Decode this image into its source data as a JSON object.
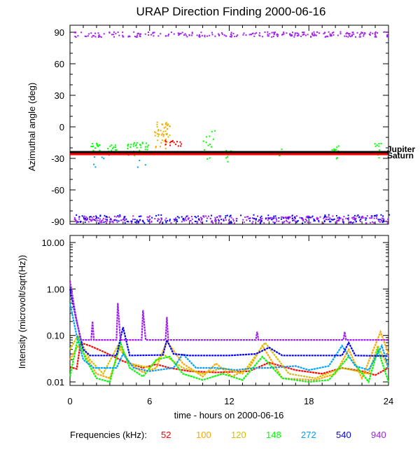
{
  "chart_data": [
    {
      "type": "scatter",
      "title": "URAP Direction Finding  2000-06-16",
      "xlabel": "",
      "ylabel": "Azimuthal angle (deg)",
      "xlim": [
        0,
        24
      ],
      "ylim": [
        -92,
        92
      ],
      "yticks": [
        "90",
        "60",
        "30",
        "0",
        "-30",
        "-60",
        "-90"
      ],
      "ytick_values": [
        90,
        60,
        30,
        0,
        -30,
        -60,
        -90
      ],
      "reference_lines": [
        {
          "label": "Jupiter",
          "value": -24,
          "color": "#000000"
        },
        {
          "label": "Saturn",
          "value": -26,
          "color": "#ff0000"
        }
      ],
      "point_clusters": [
        {
          "freq": "940",
          "hours": [
            0.3,
            24
          ],
          "deg": [
            86,
            91
          ],
          "n": 260
        },
        {
          "freq": "940",
          "hours": [
            0.3,
            24
          ],
          "deg": [
            -91,
            -84
          ],
          "n": 320
        },
        {
          "freq": "540",
          "hours": [
            0.3,
            24
          ],
          "deg": [
            -91,
            -83
          ],
          "n": 180
        },
        {
          "freq": "148",
          "hours": [
            1.5,
            2.2
          ],
          "deg": [
            -25,
            -15
          ],
          "n": 14
        },
        {
          "freq": "148",
          "hours": [
            2.8,
            3.5
          ],
          "deg": [
            -25,
            -15
          ],
          "n": 14
        },
        {
          "freq": "148",
          "hours": [
            4,
            6
          ],
          "deg": [
            -28,
            -14
          ],
          "n": 40
        },
        {
          "freq": "100",
          "hours": [
            6.3,
            7.3
          ],
          "deg": [
            -20,
            6
          ],
          "n": 30
        },
        {
          "freq": "120",
          "hours": [
            6.5,
            7.5
          ],
          "deg": [
            -15,
            5
          ],
          "n": 20
        },
        {
          "freq": "52",
          "hours": [
            7,
            8.5
          ],
          "deg": [
            -18,
            -12
          ],
          "n": 15
        },
        {
          "freq": "148",
          "hours": [
            10,
            11
          ],
          "deg": [
            -30,
            -2
          ],
          "n": 15
        },
        {
          "freq": "148",
          "hours": [
            11.5,
            12.3
          ],
          "deg": [
            -33,
            -20
          ],
          "n": 8
        },
        {
          "freq": "148",
          "hours": [
            15.5,
            16
          ],
          "deg": [
            -28,
            -20
          ],
          "n": 6
        },
        {
          "freq": "148",
          "hours": [
            19.7,
            20.2
          ],
          "deg": [
            -30,
            -16
          ],
          "n": 10
        },
        {
          "freq": "148",
          "hours": [
            22.8,
            23.4
          ],
          "deg": [
            -30,
            -14
          ],
          "n": 10
        },
        {
          "freq": "272",
          "hours": [
            1,
            6
          ],
          "deg": [
            -38,
            -25
          ],
          "n": 10
        }
      ]
    },
    {
      "type": "line",
      "xlabel": "time - hours on 2000-06-16",
      "ylabel": "Intensity (microvolt/sqrt(Hz))",
      "xlim": [
        0,
        24
      ],
      "ylim": [
        0.01,
        10
      ],
      "yscale": "log",
      "yticks": [
        "10.00",
        "1.00",
        "0.10",
        "0.01"
      ],
      "ytick_values": [
        10,
        1,
        0.1,
        0.01
      ],
      "xticks": [
        "0",
        "6",
        "12",
        "18",
        "24"
      ],
      "xtick_values": [
        0,
        6,
        12,
        18,
        24
      ],
      "legend_title": "Frequencies (kHz):",
      "series": [
        {
          "name": "52",
          "color": "#ff0000",
          "points": [
            [
              0,
              0.021
            ],
            [
              0.5,
              0.019
            ],
            [
              0.8,
              0.07
            ],
            [
              1.5,
              0.06
            ],
            [
              2.5,
              0.045
            ],
            [
              4,
              0.028
            ],
            [
              5.5,
              0.02
            ],
            [
              6.5,
              0.024
            ],
            [
              7.5,
              0.02
            ],
            [
              9,
              0.017
            ],
            [
              11,
              0.016
            ],
            [
              13.5,
              0.017
            ],
            [
              15,
              0.026
            ],
            [
              17,
              0.018
            ],
            [
              19,
              0.015
            ],
            [
              20.5,
              0.02
            ],
            [
              22,
              0.017
            ],
            [
              23,
              0.014
            ],
            [
              24,
              0.02
            ]
          ]
        },
        {
          "name": "100",
          "color": "#ffa500",
          "points": [
            [
              0,
              0.03
            ],
            [
              0.6,
              0.06
            ],
            [
              1.2,
              0.035
            ],
            [
              2,
              0.015
            ],
            [
              3,
              0.012
            ],
            [
              3.8,
              0.06
            ],
            [
              4.5,
              0.025
            ],
            [
              5.5,
              0.016
            ],
            [
              6.5,
              0.02
            ],
            [
              7.3,
              0.075
            ],
            [
              8.5,
              0.025
            ],
            [
              10,
              0.013
            ],
            [
              11,
              0.025
            ],
            [
              12.2,
              0.013
            ],
            [
              13.5,
              0.02
            ],
            [
              14.5,
              0.06
            ],
            [
              16,
              0.012
            ],
            [
              18.5,
              0.011
            ],
            [
              20,
              0.015
            ],
            [
              21,
              0.05
            ],
            [
              22,
              0.012
            ],
            [
              23.4,
              0.12
            ],
            [
              24,
              0.04
            ]
          ]
        },
        {
          "name": "120",
          "color": "#d4c000",
          "points": [
            [
              0,
              0.05
            ],
            [
              0.6,
              0.1
            ],
            [
              1.5,
              0.03
            ],
            [
              2.5,
              0.015
            ],
            [
              3.6,
              0.06
            ],
            [
              4.5,
              0.025
            ],
            [
              6,
              0.02
            ],
            [
              7,
              0.04
            ],
            [
              8.5,
              0.02
            ],
            [
              10,
              0.015
            ],
            [
              11.5,
              0.02
            ],
            [
              13,
              0.015
            ],
            [
              14.7,
              0.07
            ],
            [
              16.5,
              0.015
            ],
            [
              18.5,
              0.012
            ],
            [
              20.5,
              0.02
            ],
            [
              22.5,
              0.015
            ],
            [
              23.2,
              0.06
            ],
            [
              24,
              0.02
            ]
          ]
        },
        {
          "name": "148",
          "color": "#00ff00",
          "points": [
            [
              0,
              0.013
            ],
            [
              0.6,
              0.09
            ],
            [
              1.2,
              0.03
            ],
            [
              2,
              0.012
            ],
            [
              3,
              0.01
            ],
            [
              3.8,
              0.07
            ],
            [
              4.5,
              0.02
            ],
            [
              5.5,
              0.013
            ],
            [
              6.5,
              0.03
            ],
            [
              7.5,
              0.035
            ],
            [
              8.5,
              0.015
            ],
            [
              10,
              0.011
            ],
            [
              11.5,
              0.015
            ],
            [
              13,
              0.011
            ],
            [
              14.5,
              0.035
            ],
            [
              16,
              0.012
            ],
            [
              18,
              0.01
            ],
            [
              19.5,
              0.011
            ],
            [
              21,
              0.035
            ],
            [
              22.5,
              0.01
            ],
            [
              23.2,
              0.05
            ],
            [
              24,
              0.01
            ]
          ]
        },
        {
          "name": "272",
          "color": "#00a0ff",
          "points": [
            [
              0,
              0.5
            ],
            [
              0.5,
              0.1
            ],
            [
              1,
              0.03
            ],
            [
              1.8,
              0.02
            ],
            [
              2.5,
              0.02
            ],
            [
              3.5,
              0.02
            ],
            [
              4,
              0.04
            ],
            [
              4.8,
              0.02
            ],
            [
              6,
              0.017
            ],
            [
              7.8,
              0.02
            ],
            [
              8.5,
              0.04
            ],
            [
              9.5,
              0.02
            ],
            [
              11,
              0.02
            ],
            [
              12.5,
              0.018
            ],
            [
              14,
              0.02
            ],
            [
              15,
              0.02
            ],
            [
              17,
              0.022
            ],
            [
              18,
              0.018
            ],
            [
              19.5,
              0.022
            ],
            [
              20.5,
              0.06
            ],
            [
              21.5,
              0.022
            ],
            [
              22.5,
              0.018
            ],
            [
              23.5,
              0.06
            ],
            [
              24,
              0.02
            ]
          ]
        },
        {
          "name": "540",
          "color": "#0000ff",
          "points": [
            [
              0,
              1.0
            ],
            [
              0.5,
              0.2
            ],
            [
              1,
              0.05
            ],
            [
              1.5,
              0.037
            ],
            [
              3.5,
              0.037
            ],
            [
              4,
              0.15
            ],
            [
              4.5,
              0.037
            ],
            [
              7,
              0.038
            ],
            [
              7.3,
              0.08
            ],
            [
              7.8,
              0.04
            ],
            [
              9,
              0.037
            ],
            [
              12,
              0.037
            ],
            [
              14,
              0.04
            ],
            [
              15,
              0.055
            ],
            [
              16,
              0.037
            ],
            [
              20.5,
              0.037
            ],
            [
              21,
              0.07
            ],
            [
              21.5,
              0.037
            ],
            [
              24,
              0.036
            ]
          ]
        },
        {
          "name": "940",
          "color": "#a020f0",
          "points": [
            [
              0,
              1.5
            ],
            [
              0.4,
              0.3
            ],
            [
              0.8,
              0.08
            ],
            [
              1.6,
              0.08
            ],
            [
              1.7,
              0.2
            ],
            [
              1.8,
              0.08
            ],
            [
              3.5,
              0.08
            ],
            [
              3.6,
              0.5
            ],
            [
              3.8,
              0.08
            ],
            [
              5.4,
              0.08
            ],
            [
              5.5,
              0.35
            ],
            [
              5.7,
              0.08
            ],
            [
              7.2,
              0.08
            ],
            [
              7.3,
              0.25
            ],
            [
              7.4,
              0.08
            ],
            [
              14,
              0.08
            ],
            [
              14.1,
              0.12
            ],
            [
              14.2,
              0.08
            ],
            [
              20.6,
              0.08
            ],
            [
              20.7,
              0.12
            ],
            [
              20.8,
              0.08
            ],
            [
              24,
              0.08
            ]
          ]
        }
      ]
    }
  ]
}
